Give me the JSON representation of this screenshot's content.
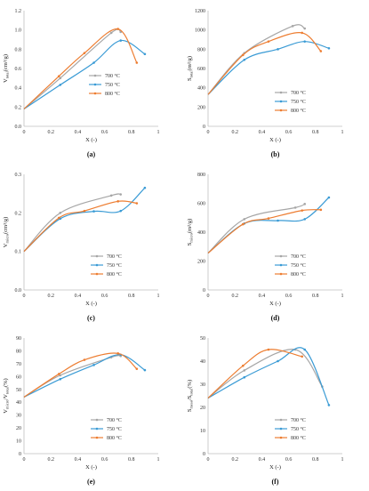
{
  "colors": {
    "700": "#a6a6a6",
    "750": "#3a9bd5",
    "800": "#ed7d31",
    "axis": "#bfbfbf"
  },
  "chart_data": [
    {
      "type": "line",
      "caption": "(a)",
      "ylabel_main": "V",
      "ylabel_sub": "total",
      "ylabel_tail": "(cm³/g)",
      "xlabel": "X (-)",
      "xlim": [
        0,
        1
      ],
      "ylim": [
        0,
        1.2
      ],
      "xticks": [
        "0",
        "0.2",
        "0.4",
        "0.6",
        "0.8",
        "1"
      ],
      "yticks": [
        "0.0",
        "0.2",
        "0.4",
        "0.6",
        "0.8",
        "1.0",
        "1.2"
      ],
      "legend_position": "center-right",
      "series": [
        {
          "name": "700 °C",
          "x": [
            0,
            0.27,
            0.65,
            0.72
          ],
          "y": [
            0.18,
            0.5,
            0.97,
            0.98
          ]
        },
        {
          "name": "750 °C",
          "x": [
            0,
            0.27,
            0.52,
            0.72,
            0.9
          ],
          "y": [
            0.18,
            0.43,
            0.66,
            0.89,
            0.75
          ]
        },
        {
          "name": "800 °C",
          "x": [
            0,
            0.26,
            0.45,
            0.7,
            0.84
          ],
          "y": [
            0.18,
            0.52,
            0.76,
            1.01,
            0.66
          ]
        }
      ]
    },
    {
      "type": "line",
      "caption": "(b)",
      "ylabel_main": "S",
      "ylabel_sub": "total",
      "ylabel_tail": "(m²/g)",
      "xlabel": "X (-)",
      "xlim": [
        0,
        1
      ],
      "ylim": [
        0,
        1200
      ],
      "xticks": [
        "0",
        "0.2",
        "0.4",
        "0.6",
        "0.8",
        "1"
      ],
      "yticks": [
        "0",
        "200",
        "400",
        "600",
        "800",
        "1000",
        "1200"
      ],
      "legend_position": "bottom-right",
      "series": [
        {
          "name": "700 °C",
          "x": [
            0,
            0.27,
            0.63,
            0.72
          ],
          "y": [
            330,
            760,
            1040,
            1015
          ]
        },
        {
          "name": "750 °C",
          "x": [
            0,
            0.27,
            0.52,
            0.72,
            0.9
          ],
          "y": [
            330,
            690,
            800,
            880,
            810
          ]
        },
        {
          "name": "800 °C",
          "x": [
            0,
            0.26,
            0.45,
            0.7,
            0.84
          ],
          "y": [
            330,
            740,
            880,
            970,
            780
          ]
        }
      ]
    },
    {
      "type": "line",
      "caption": "(c)",
      "ylabel_main": "V",
      "ylabel_sub": "micro",
      "ylabel_tail": "(cm³/g)",
      "xlabel": "X (-)",
      "xlim": [
        0,
        1
      ],
      "ylim": [
        0,
        0.3
      ],
      "xticks": [
        "0",
        "0.2",
        "0.4",
        "0.6",
        "0.8",
        "1"
      ],
      "yticks": [
        "0.0",
        "0.1",
        "0.2",
        "0.3"
      ],
      "legend_position": "bottom-right",
      "series": [
        {
          "name": "700 °C",
          "x": [
            0,
            0.27,
            0.65,
            0.72
          ],
          "y": [
            0.1,
            0.2,
            0.245,
            0.248
          ]
        },
        {
          "name": "750 °C",
          "x": [
            0,
            0.27,
            0.52,
            0.72,
            0.9
          ],
          "y": [
            0.1,
            0.185,
            0.204,
            0.205,
            0.265
          ]
        },
        {
          "name": "800 °C",
          "x": [
            0,
            0.26,
            0.45,
            0.7,
            0.84
          ],
          "y": [
            0.1,
            0.187,
            0.205,
            0.23,
            0.225
          ]
        }
      ]
    },
    {
      "type": "line",
      "caption": "(d)",
      "ylabel_main": "S",
      "ylabel_sub": "micro",
      "ylabel_tail": "(m²/g)",
      "xlabel": "X (-)",
      "xlim": [
        0,
        1
      ],
      "ylim": [
        0,
        800
      ],
      "xticks": [
        "0",
        "0.2",
        "0.4",
        "0.6",
        "0.8",
        "1"
      ],
      "yticks": [
        "0",
        "200",
        "400",
        "600",
        "800"
      ],
      "legend_position": "bottom-right",
      "series": [
        {
          "name": "700 °C",
          "x": [
            0,
            0.27,
            0.65,
            0.72
          ],
          "y": [
            255,
            490,
            570,
            595
          ]
        },
        {
          "name": "750 °C",
          "x": [
            0,
            0.27,
            0.52,
            0.72,
            0.9
          ],
          "y": [
            255,
            460,
            480,
            490,
            640
          ]
        },
        {
          "name": "800 °C",
          "x": [
            0,
            0.26,
            0.45,
            0.7,
            0.84
          ],
          "y": [
            255,
            455,
            495,
            550,
            555
          ]
        }
      ]
    },
    {
      "type": "line",
      "caption": "(e)",
      "ylabel_main": "V",
      "ylabel_sub": "micro",
      "ylabel_mid": "/V",
      "ylabel_sub2": "total",
      "ylabel_tail": "(%)",
      "xlabel": "X (-)",
      "xlim": [
        0,
        1
      ],
      "ylim": [
        0,
        90
      ],
      "xticks": [
        "0",
        "0.2",
        "0.4",
        "0.6",
        "0.8",
        "1"
      ],
      "yticks": [
        "0",
        "10",
        "20",
        "30",
        "40",
        "50",
        "60",
        "70",
        "80",
        "90"
      ],
      "legend_position": "bottom-right",
      "series": [
        {
          "name": "700 °C",
          "x": [
            0,
            0.27,
            0.65,
            0.72
          ],
          "y": [
            44,
            61,
            75,
            76
          ]
        },
        {
          "name": "750 °C",
          "x": [
            0,
            0.27,
            0.52,
            0.72,
            0.9
          ],
          "y": [
            44,
            58,
            69,
            77,
            65
          ]
        },
        {
          "name": "800 °C",
          "x": [
            0,
            0.26,
            0.45,
            0.7,
            0.84
          ],
          "y": [
            44,
            62,
            73,
            78,
            66
          ]
        }
      ]
    },
    {
      "type": "line",
      "caption": "(f)",
      "ylabel_main": "S",
      "ylabel_sub": "meso",
      "ylabel_mid": "/S",
      "ylabel_sub2": "total",
      "ylabel_tail": "(%)",
      "xlabel": "X (-)",
      "xlim": [
        0,
        1
      ],
      "ylim": [
        0,
        50
      ],
      "xticks": [
        "0",
        "0.2",
        "0.4",
        "0.6",
        "0.8",
        "1"
      ],
      "yticks": [
        "0",
        "10",
        "20",
        "30",
        "40",
        "50"
      ],
      "legend_position": "bottom-right",
      "series": [
        {
          "name": "700 °C",
          "x": [
            0,
            0.27,
            0.65,
            0.85
          ],
          "y": [
            24,
            36,
            45,
            29
          ]
        },
        {
          "name": "750 °C",
          "x": [
            0,
            0.27,
            0.52,
            0.72,
            0.9
          ],
          "y": [
            24,
            33,
            40,
            45,
            21
          ]
        },
        {
          "name": "800 °C",
          "x": [
            0,
            0.26,
            0.45,
            0.7
          ],
          "y": [
            24,
            38,
            45,
            42
          ]
        }
      ]
    }
  ]
}
